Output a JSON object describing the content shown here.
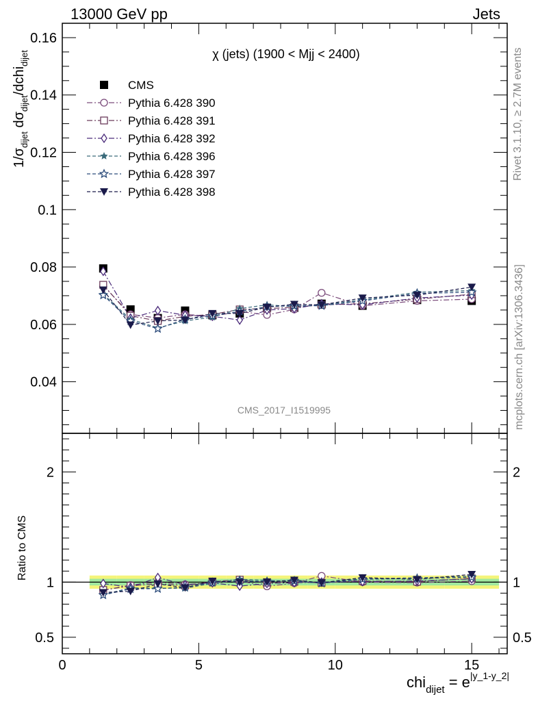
{
  "header": {
    "left": "13000 GeV pp",
    "right": "Jets"
  },
  "side": {
    "rivet": "Rivet 3.1.10, ≥ 2.7M events",
    "mcplots": "mcplots.cern.ch [arXiv:1306.3436]"
  },
  "analysis_tag": "CMS_2017_I1519995",
  "chart_data": {
    "type": "line",
    "title": "χ (jets) (1900 < Mjj < 2400)",
    "ylabel": "1/σ_dijet dσ_dijet/dchi_dijet",
    "xlabel": "chi_dijet = e^|y_1-y_2|",
    "ratio_ylabel": "Ratio to CMS",
    "xlim": [
      0,
      16.3
    ],
    "ylim": [
      0.022,
      0.165
    ],
    "ratio_ylim": [
      0.35,
      2.35
    ],
    "x_ticks": [
      0,
      5,
      10,
      15
    ],
    "x_tick_labels": [
      "0",
      "5",
      "10",
      "15"
    ],
    "y_ticks": [
      0.04,
      0.06,
      0.08,
      0.1,
      0.12,
      0.14,
      0.16
    ],
    "y_tick_labels": [
      "0.04",
      "0.06",
      "0.08",
      "0.1",
      "0.12",
      "0.14",
      "0.16"
    ],
    "ratio_ticks": [
      0.5,
      1,
      2
    ],
    "ratio_tick_labels": [
      "0.5",
      "1",
      "2"
    ],
    "x": [
      1.5,
      2.5,
      3.5,
      4.5,
      5.5,
      6.5,
      7.5,
      8.5,
      9.5,
      11,
      13,
      15
    ],
    "bin_edges": [
      1,
      2,
      3,
      4,
      5,
      6,
      7,
      8,
      9,
      10,
      12,
      14,
      16
    ],
    "data": {
      "name": "CMS",
      "values": [
        0.0795,
        0.0652,
        0.0622,
        0.0648,
        0.0632,
        0.0638,
        0.0658,
        0.0658,
        0.0672,
        0.0665,
        0.0685,
        0.0682
      ],
      "band_inner": 0.03,
      "band_outer": 0.06,
      "color": "#000000"
    },
    "series": [
      {
        "name": "Pythia 6.428 390",
        "marker": "circle-open",
        "dash": "8,3,2,3",
        "color": "#7a4a7a",
        "values": [
          0.0735,
          0.0635,
          0.0622,
          0.0635,
          0.0628,
          0.0645,
          0.0633,
          0.0652,
          0.071,
          0.0665,
          0.0682,
          0.0688
        ]
      },
      {
        "name": "Pythia 6.428 391",
        "marker": "square-open",
        "dash": "8,3,2,3",
        "color": "#6a3a5a",
        "values": [
          0.0738,
          0.063,
          0.0612,
          0.0628,
          0.0635,
          0.0652,
          0.0655,
          0.066,
          0.0668,
          0.0672,
          0.0688,
          0.0705
        ]
      },
      {
        "name": "Pythia 6.428 392",
        "marker": "diamond-open",
        "dash": "8,3,2,3",
        "color": "#4a2a7a",
        "values": [
          0.0785,
          0.0622,
          0.0648,
          0.0632,
          0.0628,
          0.0615,
          0.065,
          0.0655,
          0.0672,
          0.0668,
          0.0692,
          0.0702
        ]
      },
      {
        "name": "Pythia 6.428 396",
        "marker": "star-filled",
        "dash": "5,3",
        "color": "#3a6a7a",
        "values": [
          0.0705,
          0.0618,
          0.0588,
          0.0612,
          0.0625,
          0.0655,
          0.0668,
          0.0662,
          0.0668,
          0.0685,
          0.0712,
          0.0718
        ]
      },
      {
        "name": "Pythia 6.428 397",
        "marker": "star-open",
        "dash": "5,3",
        "color": "#2a4a7a",
        "values": [
          0.0702,
          0.0612,
          0.0585,
          0.0618,
          0.063,
          0.0645,
          0.0662,
          0.0665,
          0.0665,
          0.0682,
          0.0708,
          0.0712
        ]
      },
      {
        "name": "Pythia 6.428 398",
        "marker": "triangle-down-filled",
        "dash": "5,3",
        "color": "#1a1a4a",
        "values": [
          0.072,
          0.0598,
          0.0612,
          0.0615,
          0.0638,
          0.0638,
          0.066,
          0.067,
          0.0668,
          0.0692,
          0.0702,
          0.073
        ]
      }
    ],
    "legend_position": "top-left"
  }
}
